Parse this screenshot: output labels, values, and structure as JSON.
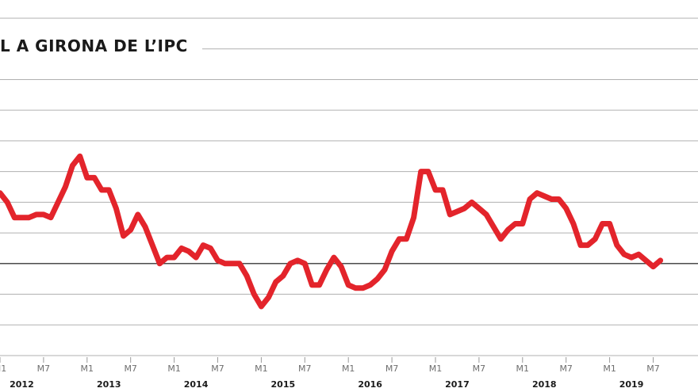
{
  "title": "L A GIRONA DE L’IPC",
  "chart_data": {
    "type": "line",
    "title": "L A GIRONA DE L’IPC",
    "xlabel": "",
    "ylabel": "",
    "grid": true,
    "x_month_labels": [
      "M1",
      "M7"
    ],
    "years": [
      "2012",
      "2013",
      "2014",
      "2015",
      "2016",
      "2017",
      "2018",
      "2019"
    ],
    "x_start_year": 2012,
    "ylim": [
      -3,
      8
    ],
    "reference_line": 0,
    "series": [
      {
        "color": "#e3242b",
        "values": [
          2.3,
          2.0,
          1.5,
          1.5,
          1.5,
          1.6,
          1.6,
          1.5,
          2.0,
          2.5,
          3.2,
          3.5,
          2.8,
          2.8,
          2.4,
          2.4,
          1.8,
          0.9,
          1.1,
          1.6,
          1.2,
          0.6,
          0.0,
          0.2,
          0.2,
          0.5,
          0.4,
          0.2,
          0.6,
          0.5,
          0.1,
          0.0,
          0.0,
          0.0,
          -0.4,
          -1.0,
          -1.4,
          -1.1,
          -0.6,
          -0.4,
          0.0,
          0.1,
          0.0,
          -0.7,
          -0.7,
          -0.2,
          0.2,
          -0.1,
          -0.7,
          -0.8,
          -0.8,
          -0.7,
          -0.5,
          -0.2,
          0.4,
          0.8,
          0.8,
          1.5,
          3.0,
          3.0,
          2.4,
          2.4,
          1.6,
          1.7,
          1.8,
          2.0,
          1.8,
          1.6,
          1.2,
          0.8,
          1.1,
          1.3,
          1.3,
          2.1,
          2.3,
          2.2,
          2.1,
          2.1,
          1.8,
          1.3,
          0.6,
          0.6,
          0.8,
          1.3,
          1.3,
          0.6,
          0.3,
          0.2,
          0.3,
          0.1,
          -0.1,
          0.1
        ]
      }
    ]
  }
}
